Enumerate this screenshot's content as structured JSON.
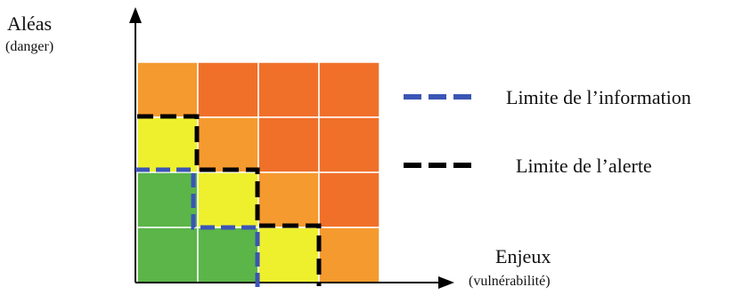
{
  "axes": {
    "y": {
      "title": "Aléas",
      "subtitle": "(danger)"
    },
    "x": {
      "title": "Enjeux",
      "subtitle": "(vulnérabilité)"
    }
  },
  "legend": [
    {
      "label": "Limite de l’information",
      "color": "#3b55b5",
      "style": "dashed"
    },
    {
      "label": "Limite de l’alerte",
      "color": "#000000",
      "style": "dashed"
    }
  ],
  "colors": {
    "green": "#5bb548",
    "yellow": "#eef02e",
    "orange": "#f59a2e",
    "red_orange": "#f0702a",
    "grid_line": "#ffffff"
  },
  "matrix": {
    "rows_top_to_bottom": [
      [
        "orange",
        "red_orange",
        "red_orange",
        "red_orange"
      ],
      [
        "yellow",
        "orange",
        "red_orange",
        "red_orange"
      ],
      [
        "green",
        "yellow",
        "orange",
        "red_orange"
      ],
      [
        "green",
        "green",
        "yellow",
        "orange"
      ]
    ]
  }
}
